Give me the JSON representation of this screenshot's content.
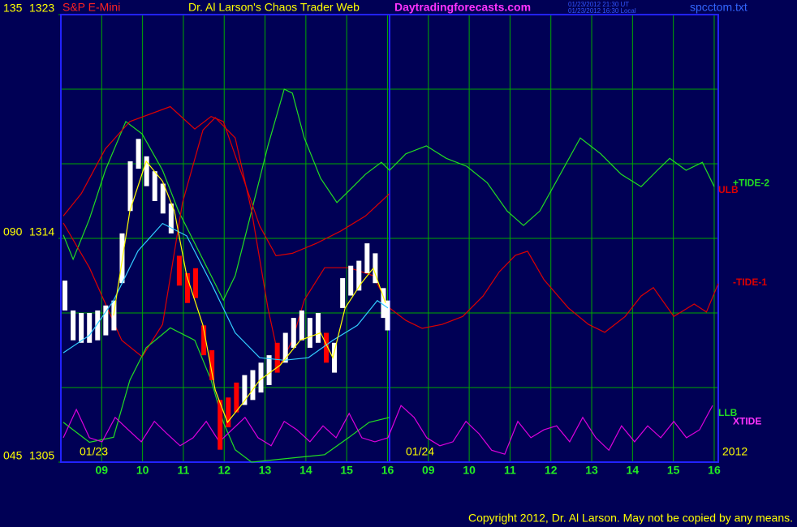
{
  "chart_data": {
    "type": "line",
    "product": "S&P E-Mini",
    "title": "Dr. Al Larson's Chaos Trader Web",
    "site": "Daytradingforecasts.com",
    "time_ut": "01/23/2012 21:30 UT",
    "time_local": "01/23/2012 16:30 Local",
    "file": "spcctom.txt",
    "dates": [
      "01/23",
      "01/24",
      "2012"
    ],
    "copyright": "Copyright 2012, Dr. Al Larson. May not be copied by any means.",
    "xlim": [
      0,
      16.1
    ],
    "xticks": [
      {
        "value": 1,
        "label": "09"
      },
      {
        "value": 2,
        "label": "10"
      },
      {
        "value": 3,
        "label": "11"
      },
      {
        "value": 4,
        "label": "12"
      },
      {
        "value": 5,
        "label": "13"
      },
      {
        "value": 6,
        "label": "14"
      },
      {
        "value": 7,
        "label": "15"
      },
      {
        "value": 8,
        "label": "16"
      },
      {
        "value": 9,
        "label": "09"
      },
      {
        "value": 10,
        "label": "10"
      },
      {
        "value": 11,
        "label": "11"
      },
      {
        "value": 12,
        "label": "12"
      },
      {
        "value": 13,
        "label": "13"
      },
      {
        "value": 14,
        "label": "14"
      },
      {
        "value": 15,
        "label": "15"
      },
      {
        "value": 16,
        "label": "16"
      }
    ],
    "ylim": [
      1305,
      1323
    ],
    "yticks": [
      1305,
      1314,
      1323
    ],
    "y2lim": [
      45,
      135
    ],
    "y2ticks": [
      {
        "value": 45,
        "label": "045"
      },
      {
        "value": 60,
        "label": null
      },
      {
        "value": 75,
        "label": null
      },
      {
        "value": 90,
        "label": "090"
      },
      {
        "value": 105,
        "label": null
      },
      {
        "value": 120,
        "label": null
      },
      {
        "value": 135,
        "label": "135"
      }
    ],
    "grid": true,
    "series": [
      {
        "name": "+TIDE-2",
        "color": "#22dd22",
        "axis": "y2",
        "x": [
          0.06,
          0.3,
          0.7,
          1.09,
          1.59,
          1.99,
          2.49,
          2.88,
          3.28,
          3.68,
          3.98,
          4.27,
          4.67,
          5.07,
          5.47,
          5.67,
          5.96,
          6.36,
          6.76,
          7.06,
          7.46,
          7.85,
          8.05,
          8.45,
          8.95,
          9.44,
          9.94,
          10.44,
          10.93,
          11.33,
          11.73,
          12.23,
          12.72,
          13.22,
          13.72,
          14.21,
          14.61,
          14.91,
          15.31,
          15.71,
          16.0
        ],
        "values": [
          90.7,
          85.8,
          93.9,
          103.7,
          113.5,
          111.0,
          103.7,
          95.5,
          89.0,
          82.5,
          77.6,
          82.5,
          95.5,
          108.6,
          120.0,
          119.2,
          110.2,
          102.1,
          97.2,
          99.6,
          102.9,
          105.3,
          103.7,
          107.0,
          108.6,
          106.1,
          104.5,
          101.2,
          95.5,
          92.6,
          95.5,
          102.9,
          110.2,
          107.0,
          102.9,
          100.4,
          103.7,
          106.1,
          103.7,
          105.3,
          100.4
        ]
      },
      {
        "name": "-TIDE-1",
        "color": "#dd0000",
        "axis": "y2",
        "x": [
          0.06,
          0.7,
          1.49,
          1.99,
          2.49,
          2.98,
          3.48,
          3.78,
          4.27,
          4.67,
          5.07,
          5.37,
          5.67,
          5.96,
          6.46,
          7.06,
          7.65,
          8.05,
          8.45,
          8.85,
          9.34,
          9.84,
          10.34,
          10.74,
          11.13,
          11.43,
          11.83,
          12.43,
          12.92,
          13.32,
          13.82,
          14.21,
          14.51,
          15.01,
          15.51,
          15.81,
          16.1
        ],
        "values": [
          93.1,
          84.1,
          69.5,
          66.2,
          72.7,
          97.2,
          111.8,
          114.3,
          110.2,
          95.5,
          76.0,
          64.6,
          69.5,
          77.6,
          84.1,
          84.1,
          82.5,
          76.0,
          73.5,
          71.9,
          72.7,
          74.3,
          78.4,
          83.3,
          86.6,
          87.4,
          81.7,
          76.0,
          72.7,
          71.1,
          74.3,
          78.4,
          80.1,
          74.3,
          76.8,
          75.2,
          80.9
        ]
      },
      {
        "name": "ULB",
        "color": "#dd0000",
        "x": [
          0.06,
          0.5,
          1.09,
          1.69,
          2.68,
          3.28,
          3.68,
          3.98,
          4.47,
          4.87,
          5.27,
          5.67,
          6.26,
          6.86,
          7.46,
          8.05
        ],
        "values": [
          1314.9,
          1315.8,
          1317.6,
          1318.7,
          1319.3,
          1318.4,
          1318.9,
          1318.7,
          1316.4,
          1314.5,
          1313.3,
          1313.4,
          1313.8,
          1314.3,
          1314.9,
          1315.8
        ]
      },
      {
        "name": "LLB",
        "color": "#22dd22",
        "x": [
          0.06,
          0.7,
          1.29,
          1.69,
          2.09,
          2.68,
          3.28,
          3.68,
          3.98,
          4.27,
          4.67,
          6.46,
          7.06,
          7.55,
          8.05
        ],
        "values": [
          1306.6,
          1305.8,
          1306.0,
          1308.3,
          1309.6,
          1310.4,
          1309.9,
          1308.3,
          1306.6,
          1305.5,
          1305.0,
          1305.3,
          1306.0,
          1306.6,
          1306.8
        ]
      },
      {
        "name": "XTIDE",
        "color": "#dd00dd",
        "axis": "y2",
        "x": [
          0.06,
          0.38,
          0.7,
          1.01,
          1.33,
          1.65,
          1.97,
          2.29,
          2.6,
          2.92,
          3.24,
          3.56,
          3.88,
          4.19,
          4.51,
          4.83,
          5.15,
          5.47,
          5.78,
          6.1,
          6.42,
          6.74,
          7.06,
          7.37,
          7.69,
          8.01,
          8.33,
          8.65,
          8.96,
          9.28,
          9.6,
          9.92,
          10.24,
          10.55,
          10.87,
          11.19,
          11.51,
          11.83,
          12.14,
          12.46,
          12.78,
          13.1,
          13.42,
          13.73,
          14.05,
          14.37,
          14.69,
          15.01,
          15.32,
          15.64,
          15.96
        ],
        "values": [
          49.9,
          55.6,
          49.9,
          49.1,
          54.0,
          51.5,
          49.1,
          53.2,
          50.7,
          48.3,
          49.9,
          53.2,
          49.1,
          51.5,
          54.0,
          49.9,
          48.3,
          53.2,
          51.5,
          49.1,
          52.3,
          49.9,
          54.8,
          49.9,
          49.1,
          49.9,
          56.4,
          54.0,
          49.9,
          48.3,
          49.1,
          53.2,
          50.7,
          47.4,
          46.6,
          53.2,
          49.9,
          51.5,
          52.3,
          49.1,
          54.0,
          49.9,
          47.4,
          52.3,
          49.1,
          52.3,
          49.9,
          53.2,
          49.9,
          51.5,
          56.4
        ]
      },
      {
        "color": "#33ccff",
        "x": [
          0.06,
          0.7,
          1.29,
          1.89,
          2.49,
          3.08,
          3.68,
          4.27,
          4.87,
          5.47,
          6.06,
          6.66,
          7.26,
          7.75,
          8.01
        ],
        "values": [
          1309.4,
          1310.1,
          1311.5,
          1313.5,
          1314.6,
          1314.1,
          1312.2,
          1310.2,
          1309.2,
          1309.1,
          1309.2,
          1309.9,
          1310.5,
          1311.5,
          1311.2
        ]
      },
      {
        "color": "#ffff00",
        "x": [
          1.29,
          1.69,
          2.09,
          2.49,
          2.78,
          3.08,
          3.48,
          3.78,
          4.08,
          4.47,
          4.87,
          5.37,
          5.86,
          6.36,
          6.66,
          6.96,
          7.36,
          7.65,
          7.95
        ],
        "values": [
          1310.9,
          1315.1,
          1317.1,
          1316.3,
          1315.1,
          1312.5,
          1310.5,
          1307.9,
          1306.6,
          1307.4,
          1308.3,
          1308.9,
          1309.9,
          1310.2,
          1309.2,
          1311.2,
          1312.2,
          1312.8,
          1311.4
        ]
      }
    ],
    "bars": {
      "x": [
        0.1,
        0.3,
        0.5,
        0.7,
        0.9,
        1.1,
        1.3,
        1.5,
        1.7,
        1.9,
        2.1,
        2.3,
        2.5,
        2.7,
        2.9,
        3.1,
        3.3,
        3.5,
        3.7,
        3.9,
        4.1,
        4.3,
        4.5,
        4.7,
        4.9,
        5.1,
        5.3,
        5.5,
        5.7,
        5.9,
        6.1,
        6.3,
        6.5,
        6.7,
        6.9,
        7.1,
        7.3,
        7.5,
        7.7,
        7.9,
        8.0
      ],
      "high": [
        1312.3,
        1311.1,
        1311.0,
        1311.0,
        1311.1,
        1311.3,
        1311.5,
        1314.2,
        1317.1,
        1318.0,
        1317.3,
        1316.7,
        1316.2,
        1315.4,
        1313.3,
        1312.6,
        1312.8,
        1310.5,
        1309.5,
        1307.5,
        1307.6,
        1308.2,
        1308.5,
        1308.7,
        1309.0,
        1309.3,
        1309.8,
        1310.2,
        1310.8,
        1311.1,
        1310.8,
        1311.0,
        1310.2,
        1309.8,
        1312.4,
        1312.9,
        1313.1,
        1313.8,
        1313.4,
        1312.0,
        1311.5
      ],
      "low": [
        1311.1,
        1309.9,
        1309.8,
        1309.8,
        1309.9,
        1310.1,
        1310.3,
        1312.2,
        1315.1,
        1316.8,
        1316.1,
        1315.5,
        1315.0,
        1314.2,
        1312.1,
        1311.4,
        1311.6,
        1309.3,
        1308.3,
        1305.5,
        1306.4,
        1307.0,
        1307.3,
        1307.5,
        1307.8,
        1308.1,
        1308.6,
        1309.0,
        1309.6,
        1309.9,
        1309.6,
        1309.8,
        1309.0,
        1308.6,
        1311.2,
        1311.7,
        1311.9,
        1312.6,
        1312.2,
        1310.8,
        1310.3
      ],
      "colors": [
        "#ffffff",
        "#ffffff",
        "#ffffff",
        "#ffffff",
        "#ffffff",
        "#ffffff",
        "#ffffff",
        "#ffffff",
        "#ffffff",
        "#ffffff",
        "#ffffff",
        "#ffffff",
        "#ffffff",
        "#ffffff",
        "#ff0000",
        "#ff0000",
        "#ff0000",
        "#ff0000",
        "#ff0000",
        "#ff0000",
        "#ff0000",
        "#ff0000",
        "#ffffff",
        "#ffffff",
        "#ffffff",
        "#ffffff",
        "#ff0000",
        "#ffffff",
        "#ffffff",
        "#ffffff",
        "#ffffff",
        "#ffffff",
        "#ff0000",
        "#ffffff",
        "#ffffff",
        "#ffffff",
        "#ffffff",
        "#ffffff",
        "#ffffff",
        "#ffffff",
        "#ffffff"
      ]
    }
  }
}
